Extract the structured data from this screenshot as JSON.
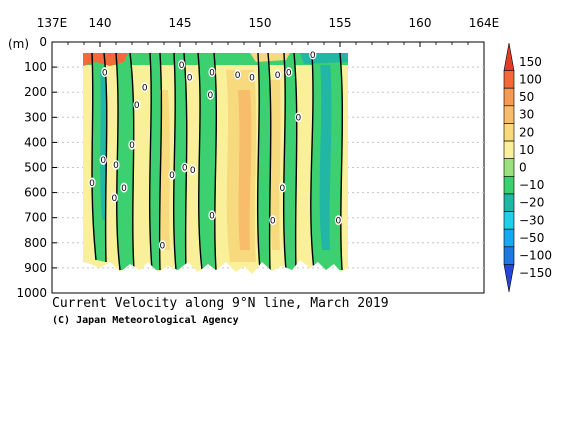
{
  "chart_data": {
    "type": "heatmap",
    "title": "Current Velocity along 9°N line, March 2019",
    "credit": "(C) Japan Meteorological Agency",
    "xlabel": "",
    "ylabel": "(m)",
    "x_ticks": [
      "137E",
      "140",
      "145",
      "150",
      "155",
      "160",
      "164E"
    ],
    "x_tick_values": [
      137,
      140,
      145,
      150,
      155,
      160,
      164
    ],
    "xlim": [
      137,
      164
    ],
    "y_ticks": [
      "0",
      "100",
      "200",
      "300",
      "400",
      "500",
      "600",
      "700",
      "800",
      "900",
      "1000"
    ],
    "y_tick_values": [
      0,
      100,
      200,
      300,
      400,
      500,
      600,
      700,
      800,
      900,
      1000
    ],
    "ylim": [
      0,
      1000
    ],
    "y_inverted": true,
    "gridlines": "dotted horizontal",
    "data_extent": {
      "lon": [
        139.2,
        155.3
      ],
      "depth": [
        50,
        1000
      ]
    },
    "colorbar": {
      "position": "right",
      "labels": [
        "150",
        "100",
        "50",
        "30",
        "20",
        "10",
        "0",
        "−10",
        "−20",
        "−30",
        "−50",
        "−100",
        "−150"
      ],
      "colors": [
        "#e03c28",
        "#f26a3a",
        "#f59a55",
        "#f7bd6a",
        "#f8da7e",
        "#fbf09a",
        "#9be07f",
        "#3dd070",
        "#22b6a4",
        "#22cfe8",
        "#16a8f0",
        "#1f77e0",
        "#2447d8"
      ]
    },
    "contour_labels": [
      {
        "lon": 140.3,
        "depth": 120,
        "text": "0"
      },
      {
        "lon": 139.5,
        "depth": 560,
        "text": "0"
      },
      {
        "lon": 140.2,
        "depth": 470,
        "text": "0"
      },
      {
        "lon": 141.0,
        "depth": 490,
        "text": "0"
      },
      {
        "lon": 140.9,
        "depth": 620,
        "text": "0"
      },
      {
        "lon": 141.5,
        "depth": 580,
        "text": "0"
      },
      {
        "lon": 142.3,
        "depth": 250,
        "text": "0"
      },
      {
        "lon": 142.8,
        "depth": 180,
        "text": "0"
      },
      {
        "lon": 142.0,
        "depth": 410,
        "text": "0"
      },
      {
        "lon": 143.9,
        "depth": 810,
        "text": "0"
      },
      {
        "lon": 144.5,
        "depth": 530,
        "text": "0"
      },
      {
        "lon": 145.3,
        "depth": 500,
        "text": "0"
      },
      {
        "lon": 145.8,
        "depth": 510,
        "text": "0"
      },
      {
        "lon": 145.1,
        "depth": 90,
        "text": "0"
      },
      {
        "lon": 145.6,
        "depth": 140,
        "text": "0"
      },
      {
        "lon": 147.0,
        "depth": 120,
        "text": "0"
      },
      {
        "lon": 146.9,
        "depth": 210,
        "text": "0"
      },
      {
        "lon": 147.0,
        "depth": 690,
        "text": "0"
      },
      {
        "lon": 148.6,
        "depth": 130,
        "text": "0"
      },
      {
        "lon": 149.5,
        "depth": 140,
        "text": "0"
      },
      {
        "lon": 150.8,
        "depth": 710,
        "text": "0"
      },
      {
        "lon": 151.1,
        "depth": 130,
        "text": "0"
      },
      {
        "lon": 151.4,
        "depth": 580,
        "text": "0"
      },
      {
        "lon": 151.8,
        "depth": 120,
        "text": "0"
      },
      {
        "lon": 152.4,
        "depth": 300,
        "text": "0"
      },
      {
        "lon": 153.3,
        "depth": 50,
        "text": "0"
      },
      {
        "lon": 154.9,
        "depth": 710,
        "text": "0"
      }
    ]
  }
}
